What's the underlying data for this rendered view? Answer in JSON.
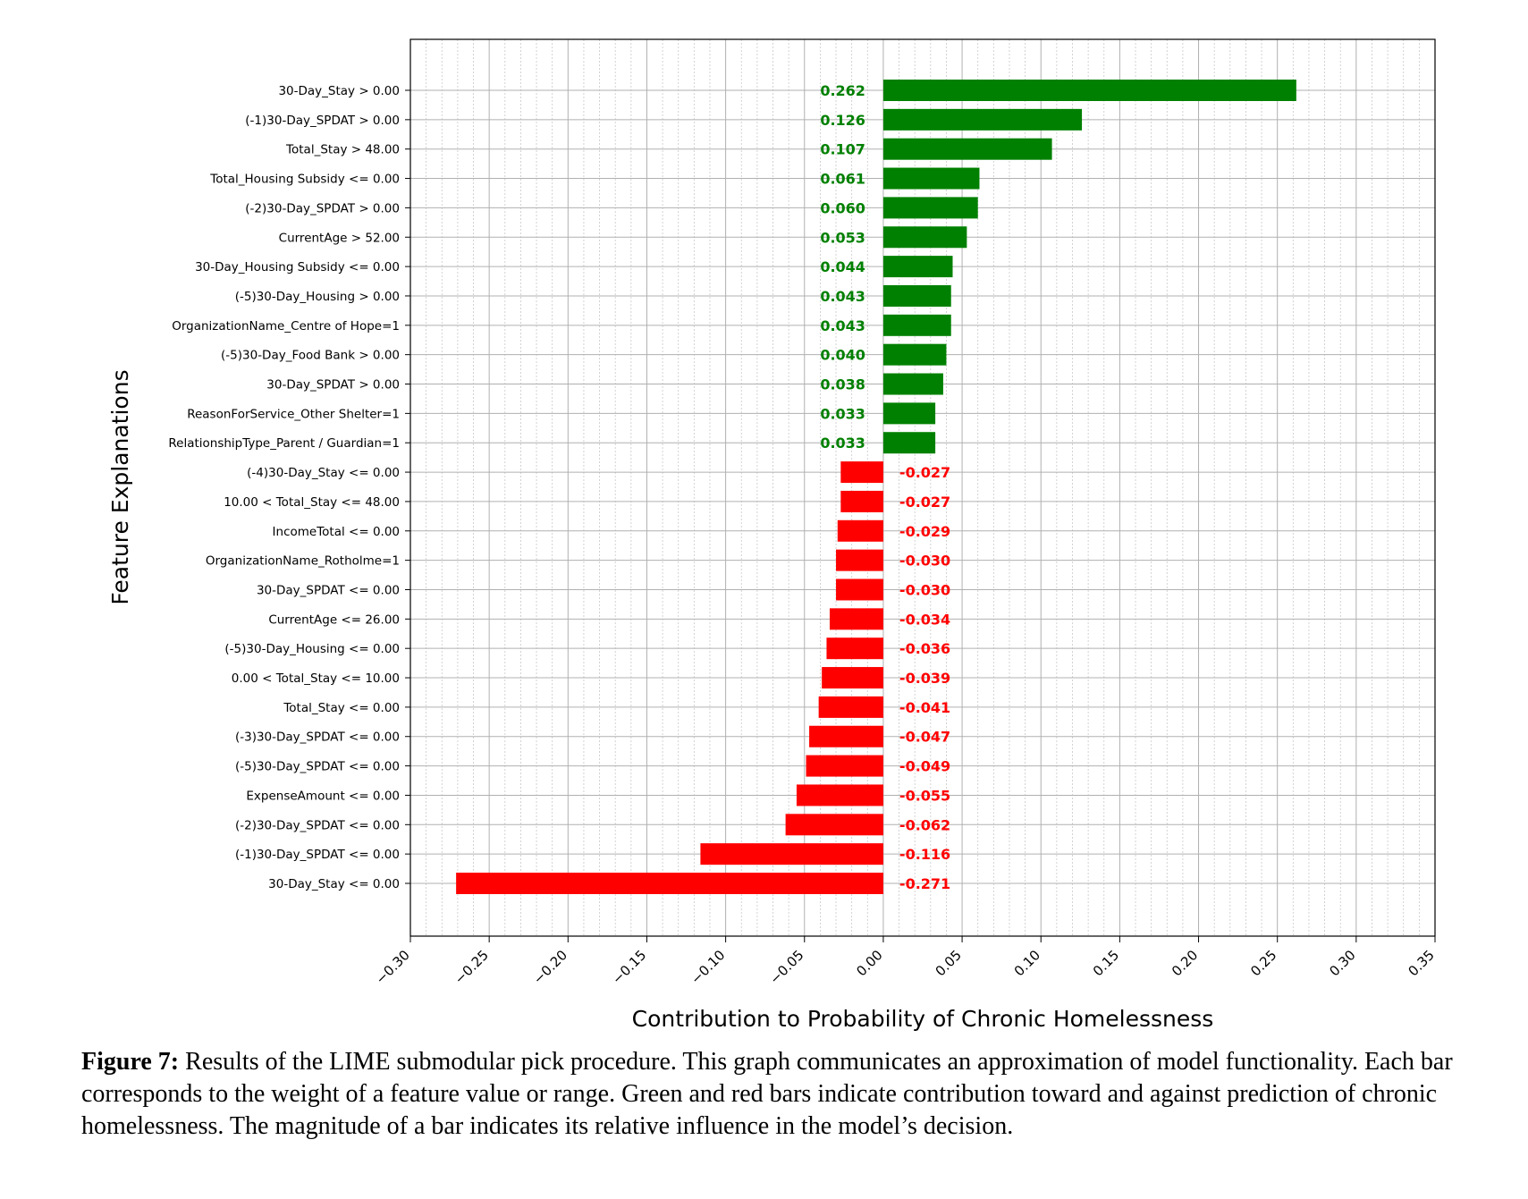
{
  "chart_data": {
    "type": "bar",
    "orientation": "horizontal",
    "xlabel": "Contribution to Probability of Chronic Homelessness",
    "ylabel": "Feature Explanations",
    "xlim": [
      -0.3,
      0.35
    ],
    "xticks": [
      -0.3,
      -0.25,
      -0.2,
      -0.15,
      -0.1,
      -0.05,
      0.0,
      0.05,
      0.1,
      0.15,
      0.2,
      0.25,
      0.3,
      0.35
    ],
    "xtick_labels": [
      "−0.30",
      "−0.25",
      "−0.20",
      "−0.15",
      "−0.10",
      "−0.05",
      "0.00",
      "0.05",
      "0.10",
      "0.15",
      "0.20",
      "0.25",
      "0.30",
      "0.35"
    ],
    "grid": true,
    "colors": {
      "positive": "#008000",
      "negative": "#ff0000",
      "grid": "#b0b0b0",
      "minor_grid": "#c8c8c8"
    },
    "bars": [
      {
        "label": "30-Day_Stay > 0.00",
        "value": 0.262,
        "value_label": "0.262"
      },
      {
        "label": "(-1)30-Day_SPDAT > 0.00",
        "value": 0.126,
        "value_label": "0.126"
      },
      {
        "label": "Total_Stay > 48.00",
        "value": 0.107,
        "value_label": "0.107"
      },
      {
        "label": "Total_Housing Subsidy <= 0.00",
        "value": 0.061,
        "value_label": "0.061"
      },
      {
        "label": "(-2)30-Day_SPDAT > 0.00",
        "value": 0.06,
        "value_label": "0.060"
      },
      {
        "label": "CurrentAge > 52.00",
        "value": 0.053,
        "value_label": "0.053"
      },
      {
        "label": "30-Day_Housing Subsidy <= 0.00",
        "value": 0.044,
        "value_label": "0.044"
      },
      {
        "label": "(-5)30-Day_Housing > 0.00",
        "value": 0.043,
        "value_label": "0.043"
      },
      {
        "label": "OrganizationName_Centre of Hope=1",
        "value": 0.043,
        "value_label": "0.043"
      },
      {
        "label": "(-5)30-Day_Food Bank > 0.00",
        "value": 0.04,
        "value_label": "0.040"
      },
      {
        "label": "30-Day_SPDAT > 0.00",
        "value": 0.038,
        "value_label": "0.038"
      },
      {
        "label": "ReasonForService_Other Shelter=1",
        "value": 0.033,
        "value_label": "0.033"
      },
      {
        "label": "RelationshipType_Parent / Guardian=1",
        "value": 0.033,
        "value_label": "0.033"
      },
      {
        "label": "(-4)30-Day_Stay <= 0.00",
        "value": -0.027,
        "value_label": "-0.027"
      },
      {
        "label": "10.00 < Total_Stay <= 48.00",
        "value": -0.027,
        "value_label": "-0.027"
      },
      {
        "label": "IncomeTotal <= 0.00",
        "value": -0.029,
        "value_label": "-0.029"
      },
      {
        "label": "OrganizationName_Rotholme=1",
        "value": -0.03,
        "value_label": "-0.030"
      },
      {
        "label": "30-Day_SPDAT <= 0.00",
        "value": -0.03,
        "value_label": "-0.030"
      },
      {
        "label": "CurrentAge <= 26.00",
        "value": -0.034,
        "value_label": "-0.034"
      },
      {
        "label": "(-5)30-Day_Housing <= 0.00",
        "value": -0.036,
        "value_label": "-0.036"
      },
      {
        "label": "0.00 < Total_Stay <= 10.00",
        "value": -0.039,
        "value_label": "-0.039"
      },
      {
        "label": "Total_Stay <= 0.00",
        "value": -0.041,
        "value_label": "-0.041"
      },
      {
        "label": "(-3)30-Day_SPDAT <= 0.00",
        "value": -0.047,
        "value_label": "-0.047"
      },
      {
        "label": "(-5)30-Day_SPDAT <= 0.00",
        "value": -0.049,
        "value_label": "-0.049"
      },
      {
        "label": "ExpenseAmount <= 0.00",
        "value": -0.055,
        "value_label": "-0.055"
      },
      {
        "label": "(-2)30-Day_SPDAT <= 0.00",
        "value": -0.062,
        "value_label": "-0.062"
      },
      {
        "label": "(-1)30-Day_SPDAT <= 0.00",
        "value": -0.116,
        "value_label": "-0.116"
      },
      {
        "label": "30-Day_Stay <= 0.00",
        "value": -0.271,
        "value_label": "-0.271"
      }
    ]
  },
  "caption": {
    "prefix": "Figure 7:",
    "text": " Results of the LIME submodular pick procedure. This graph communicates an approximation of model functionality. Each bar corresponds to the weight of a feature value or range. Green and red bars indicate contribution toward and against prediction of chronic homelessness. The magnitude of a bar indicates its relative influence in the model’s decision."
  }
}
